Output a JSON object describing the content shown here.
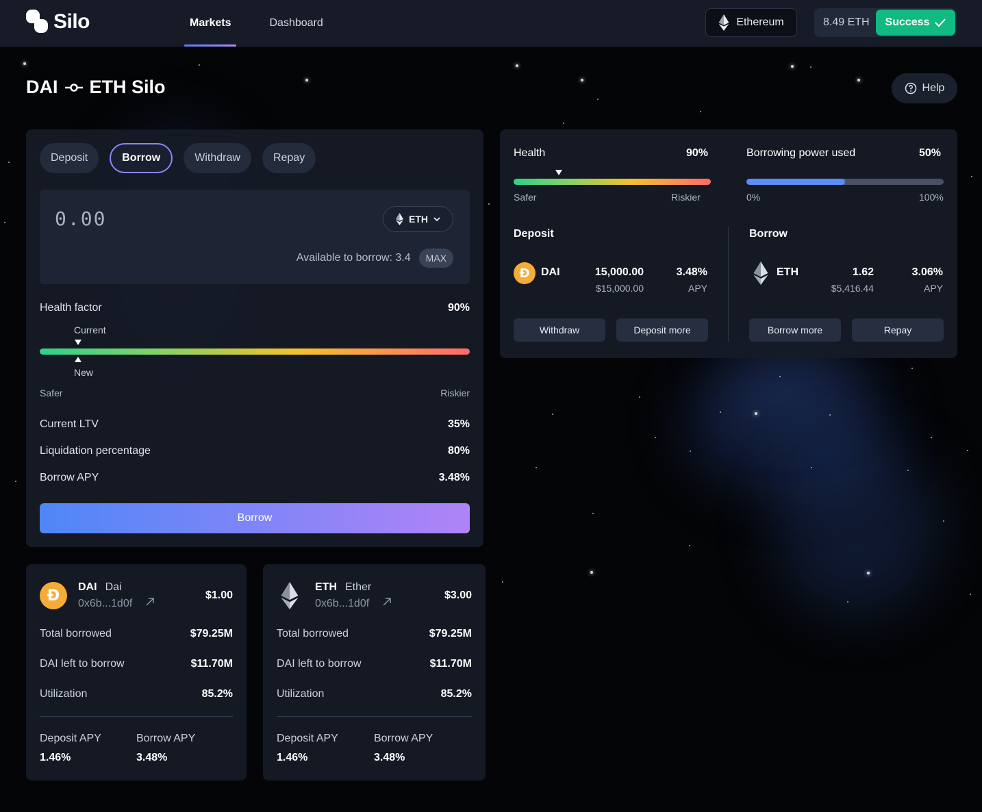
{
  "brand": {
    "name": "Silo"
  },
  "nav": [
    {
      "label": "Markets",
      "active": true
    },
    {
      "label": "Dashboard",
      "active": false
    }
  ],
  "network": {
    "label": "Ethereum"
  },
  "wallet": {
    "balance": "8.49 ETH",
    "status": "Success"
  },
  "page": {
    "title_left": "DAI",
    "title_right": "ETH Silo",
    "help": "Help"
  },
  "action_panel": {
    "tabs": [
      "Deposit",
      "Borrow",
      "Withdraw",
      "Repay"
    ],
    "active_tab": "Borrow",
    "amount": "0.00",
    "token": "ETH",
    "available_label": "Available to borrow: 3.4",
    "max_label": "MAX",
    "health_factor_label": "Health factor",
    "health_factor_value": "90%",
    "current_label": "Current",
    "new_label": "New",
    "safer": "Safer",
    "riskier": "Riskier",
    "stats": [
      {
        "label": "Current LTV",
        "value": "35%"
      },
      {
        "label": "Liquidation percentage",
        "value": "80%"
      },
      {
        "label": "Borrow APY",
        "value": "3.48%"
      }
    ],
    "submit_label": "Borrow"
  },
  "position_panel": {
    "health": {
      "label": "Health",
      "value": "90%",
      "safer": "Safer",
      "riskier": "Riskier"
    },
    "borrowing_power": {
      "label": "Borrowing power used",
      "value": "50%",
      "min": "0%",
      "max": "100%",
      "fill_percent": 50
    },
    "deposit": {
      "heading": "Deposit",
      "symbol": "DAI",
      "amount": "15,000.00",
      "amount_usd": "$15,000.00",
      "apy": "3.48%",
      "apy_label": "APY",
      "buttons": [
        "Withdraw",
        "Deposit more"
      ]
    },
    "borrow": {
      "heading": "Borrow",
      "symbol": "ETH",
      "amount": "1.62",
      "amount_usd": "$5,416.44",
      "apy": "3.06%",
      "apy_label": "APY",
      "buttons": [
        "Borrow more",
        "Repay"
      ]
    }
  },
  "asset_cards": [
    {
      "symbol": "DAI",
      "name": "Dai",
      "address": "0x6b...1d0f",
      "price": "$1.00",
      "rows": [
        {
          "label": "Total borrowed",
          "value": "$79.25M"
        },
        {
          "label": "DAI left to borrow",
          "value": "$11.70M"
        },
        {
          "label": "Utilization",
          "value": "85.2%"
        }
      ],
      "deposit_apy_label": "Deposit APY",
      "deposit_apy": "1.46%",
      "borrow_apy_label": "Borrow APY",
      "borrow_apy": "3.48%"
    },
    {
      "symbol": "ETH",
      "name": "Ether",
      "address": "0x6b...1d0f",
      "price": "$3.00",
      "rows": [
        {
          "label": "Total borrowed",
          "value": "$79.25M"
        },
        {
          "label": "DAI left to borrow",
          "value": "$11.70M"
        },
        {
          "label": "Utilization",
          "value": "85.2%"
        }
      ],
      "deposit_apy_label": "Deposit APY",
      "deposit_apy": "1.46%",
      "borrow_apy_label": "Borrow APY",
      "borrow_apy": "3.48%"
    }
  ],
  "colors": {
    "accent": "#8f85ff",
    "success": "#12b980",
    "dai": "#f5ac37",
    "bar_fill": "#5b8df6"
  }
}
